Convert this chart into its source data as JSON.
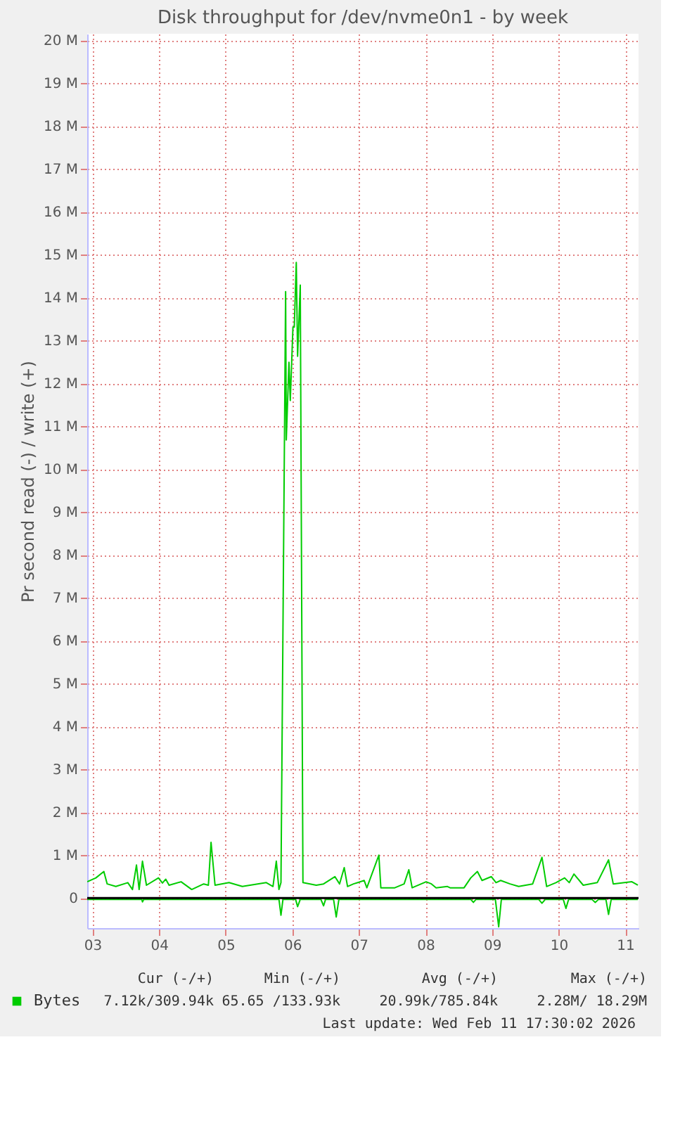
{
  "chart_data": {
    "type": "line",
    "title": "Disk throughput for /dev/nvme0n1 - by week",
    "ylabel": "Pr second read (-) / write (+)",
    "xlim": [
      2.92,
      11.2
    ],
    "xticks": [
      {
        "value": 3,
        "label": "03"
      },
      {
        "value": 4,
        "label": "04"
      },
      {
        "value": 5,
        "label": "05"
      },
      {
        "value": 6,
        "label": "06"
      },
      {
        "value": 7,
        "label": "07"
      },
      {
        "value": 8,
        "label": "08"
      },
      {
        "value": 9,
        "label": "09"
      },
      {
        "value": 10,
        "label": "10"
      },
      {
        "value": 11,
        "label": "11"
      }
    ],
    "ylim": [
      -0.7,
      20.15
    ],
    "yticks": [
      0,
      {
        "value": 1,
        "label": "1 M"
      },
      {
        "value": 2,
        "label": "2 M"
      },
      {
        "value": 3,
        "label": "3 M"
      },
      {
        "value": 4,
        "label": "4 M"
      },
      {
        "value": 5,
        "label": "5 M"
      },
      {
        "value": 6,
        "label": "6 M"
      },
      {
        "value": 7,
        "label": "7 M"
      },
      {
        "value": 8,
        "label": "8 M"
      },
      {
        "value": 9,
        "label": "9 M"
      },
      {
        "value": 10,
        "label": "10 M"
      },
      {
        "value": 11,
        "label": "11 M"
      },
      {
        "value": 12,
        "label": "12 M"
      },
      {
        "value": 13,
        "label": "13 M"
      },
      {
        "value": 14,
        "label": "14 M"
      },
      {
        "value": 15,
        "label": "15 M"
      },
      {
        "value": 16,
        "label": "16 M"
      },
      {
        "value": 17,
        "label": "17 M"
      },
      {
        "value": 18,
        "label": "18 M"
      },
      {
        "value": 19,
        "label": "19 M"
      },
      {
        "value": 20,
        "label": "20 M"
      }
    ],
    "grid": true,
    "legend": "bottom",
    "marker": "none",
    "line_style": "solid",
    "ref_lines": [
      {
        "axis": "y",
        "value": 0,
        "color": "#000000"
      }
    ],
    "series": [
      {
        "name": "Bytes",
        "color": "#00cc00",
        "x": [
          2.92,
          3.05,
          3.17,
          3.22,
          3.35,
          3.53,
          3.6,
          3.66,
          3.7,
          3.75,
          3.81,
          3.99,
          4.05,
          4.1,
          4.15,
          4.33,
          4.49,
          4.67,
          4.74,
          4.78,
          4.84,
          5.05,
          5.25,
          5.61,
          5.71,
          5.76,
          5.8,
          5.83,
          5.9,
          5.91,
          5.95,
          5.97,
          6.01,
          6.03,
          6.06,
          6.08,
          6.12,
          6.16,
          6.36,
          6.47,
          6.64,
          6.71,
          6.78,
          6.83,
          6.92,
          7.08,
          7.12,
          7.3,
          7.33,
          7.54,
          7.68,
          7.75,
          7.8,
          8.01,
          8.09,
          8.16,
          8.33,
          8.37,
          8.58,
          8.68,
          8.78,
          8.85,
          8.99,
          9.06,
          9.13,
          9.27,
          9.4,
          9.61,
          9.75,
          9.82,
          9.96,
          10.09,
          10.16,
          10.23,
          10.37,
          10.58,
          10.75,
          10.82,
          10.99,
          11.1,
          11.19
        ],
        "values": [
          0.38,
          0.47,
          0.62,
          0.33,
          0.27,
          0.36,
          0.2,
          0.77,
          0.2,
          0.86,
          0.3,
          0.47,
          0.35,
          0.44,
          0.3,
          0.38,
          0.2,
          0.33,
          0.3,
          1.3,
          0.3,
          0.36,
          0.27,
          0.36,
          0.27,
          0.86,
          0.2,
          0.36,
          14.14,
          10.68,
          12.49,
          11.6,
          13.31,
          13.31,
          14.82,
          12.63,
          14.29,
          0.36,
          0.3,
          0.33,
          0.5,
          0.33,
          0.71,
          0.27,
          0.33,
          0.41,
          0.24,
          1.0,
          0.24,
          0.24,
          0.33,
          0.66,
          0.24,
          0.38,
          0.33,
          0.24,
          0.27,
          0.24,
          0.24,
          0.47,
          0.62,
          0.41,
          0.5,
          0.36,
          0.41,
          0.33,
          0.27,
          0.33,
          0.95,
          0.27,
          0.36,
          0.47,
          0.36,
          0.56,
          0.3,
          0.36,
          0.89,
          0.33,
          0.36,
          0.38,
          0.3
        ]
      },
      {
        "color": "#00cc00",
        "x": [
          2.92,
          3.74,
          3.75,
          3.77,
          5.8,
          5.83,
          5.86,
          6.05,
          6.08,
          6.12,
          6.43,
          6.47,
          6.5,
          6.62,
          6.66,
          6.7,
          8.68,
          8.72,
          8.76,
          9.05,
          9.1,
          9.14,
          9.7,
          9.75,
          9.8,
          10.07,
          10.11,
          10.15,
          10.5,
          10.55,
          10.6,
          10.71,
          10.75,
          10.79,
          11.19
        ],
        "values": [
          -0.03,
          -0.03,
          -0.09,
          -0.03,
          -0.03,
          -0.4,
          -0.03,
          -0.03,
          -0.2,
          -0.03,
          -0.03,
          -0.18,
          -0.03,
          -0.03,
          -0.44,
          -0.03,
          -0.03,
          -0.1,
          -0.03,
          -0.03,
          -0.67,
          -0.03,
          -0.03,
          -0.12,
          -0.03,
          -0.03,
          -0.24,
          -0.03,
          -0.03,
          -0.1,
          -0.03,
          -0.03,
          -0.38,
          -0.03,
          -0.03
        ]
      }
    ],
    "annotations": [
      "Cur (-/+)",
      "Min (-/+)",
      "Avg (-/+)",
      "Max (-/+)",
      "7.12k/309.94k",
      "65.65 /133.93k",
      "20.99k/785.84k",
      "2.28M/ 18.29M",
      "Last update: Wed Feb 11 17:30:02 2026"
    ]
  }
}
